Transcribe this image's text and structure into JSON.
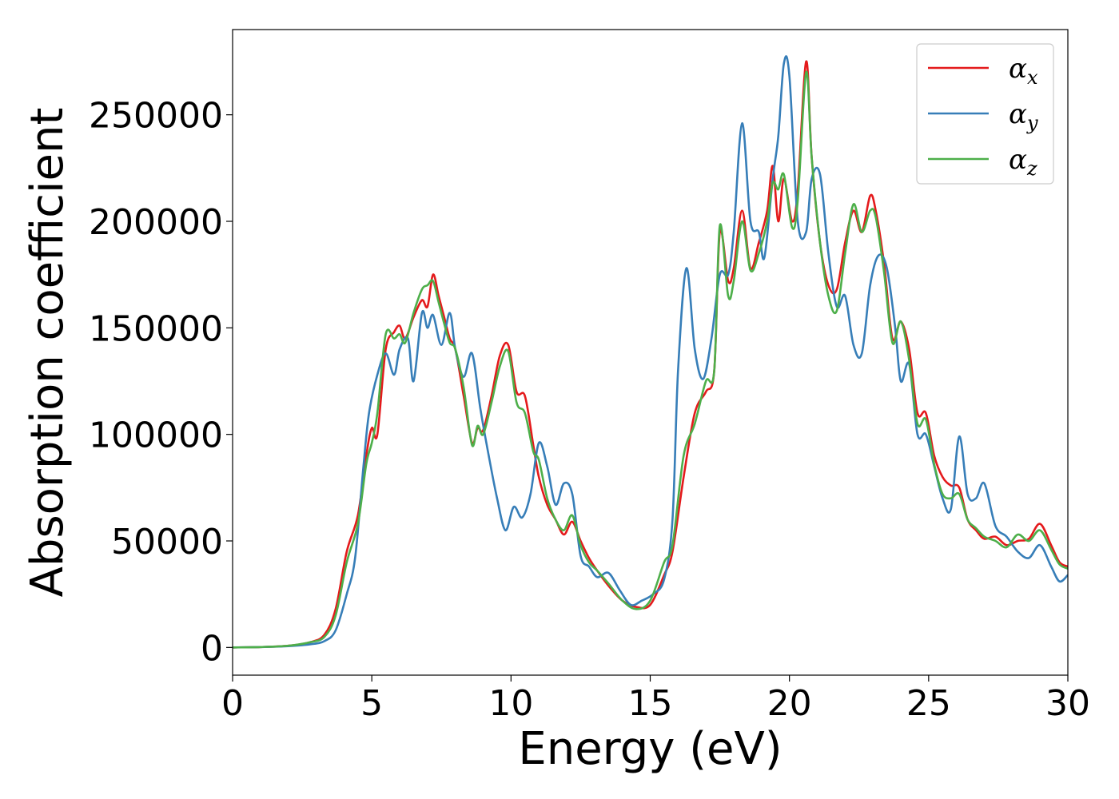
{
  "chart_data": {
    "type": "line",
    "xlabel": "Energy (eV)",
    "ylabel": "Absorption coefficient",
    "xlim": [
      0,
      30
    ],
    "ylim": [
      -13000,
      290000
    ],
    "xticks": [
      0,
      5,
      10,
      15,
      20,
      25,
      30
    ],
    "yticks": [
      0,
      50000,
      100000,
      150000,
      200000,
      250000
    ],
    "grid": false,
    "legend_position": "top-right",
    "series": [
      {
        "name": "α",
        "subscript": "x",
        "color": "#e41a1c",
        "x": [
          0,
          1,
          2,
          2.8,
          3.3,
          3.7,
          4.1,
          4.5,
          4.8,
          5.0,
          5.2,
          5.5,
          5.8,
          6.0,
          6.2,
          6.5,
          6.8,
          7.0,
          7.2,
          7.4,
          7.6,
          7.8,
          8.0,
          8.3,
          8.6,
          8.8,
          9.0,
          9.3,
          9.6,
          9.9,
          10.2,
          10.5,
          10.8,
          11.0,
          11.3,
          11.6,
          11.9,
          12.2,
          12.5,
          12.8,
          13.1,
          13.5,
          14.0,
          14.5,
          15.0,
          15.5,
          15.8,
          16.2,
          16.6,
          17.0,
          17.3,
          17.5,
          17.8,
          18.0,
          18.3,
          18.6,
          18.9,
          19.2,
          19.4,
          19.6,
          19.8,
          20.1,
          20.3,
          20.6,
          20.8,
          21.1,
          21.4,
          21.7,
          22.0,
          22.3,
          22.6,
          22.9,
          23.1,
          23.4,
          23.7,
          24.0,
          24.3,
          24.6,
          24.9,
          25.2,
          25.5,
          25.8,
          26.1,
          26.4,
          26.7,
          27.0,
          27.4,
          27.8,
          28.2,
          28.6,
          29.0,
          29.4,
          29.7,
          30.0
        ],
        "y": [
          0,
          200,
          800,
          2500,
          6000,
          18000,
          45000,
          62000,
          90000,
          103000,
          100000,
          140000,
          148000,
          151000,
          145000,
          155000,
          163000,
          160000,
          175000,
          165000,
          155000,
          145000,
          140000,
          118000,
          96000,
          103000,
          102000,
          118000,
          137000,
          142000,
          120000,
          118000,
          95000,
          80000,
          67000,
          60000,
          53000,
          59000,
          50000,
          42000,
          36000,
          29000,
          22000,
          19000,
          20000,
          34000,
          45000,
          80000,
          110000,
          120000,
          130000,
          195000,
          172000,
          178000,
          205000,
          178000,
          190000,
          205000,
          226000,
          200000,
          220000,
          200000,
          215000,
          275000,
          230000,
          190000,
          170000,
          168000,
          190000,
          205000,
          195000,
          212000,
          205000,
          180000,
          145000,
          153000,
          140000,
          110000,
          110000,
          90000,
          80000,
          76000,
          75000,
          60000,
          55000,
          51000,
          52000,
          48000,
          50000,
          51000,
          58000,
          48000,
          40000,
          38000
        ]
      },
      {
        "name": "α",
        "subscript": "y",
        "color": "#377eb8",
        "x": [
          0,
          1,
          2,
          2.8,
          3.3,
          3.7,
          4.1,
          4.4,
          4.7,
          4.9,
          5.2,
          5.5,
          5.8,
          6.0,
          6.3,
          6.5,
          6.8,
          7.0,
          7.2,
          7.5,
          7.8,
          8.0,
          8.3,
          8.6,
          8.9,
          9.2,
          9.5,
          9.8,
          10.1,
          10.4,
          10.7,
          11.0,
          11.3,
          11.6,
          11.9,
          12.2,
          12.5,
          12.8,
          13.1,
          13.5,
          13.9,
          14.3,
          14.7,
          15.1,
          15.5,
          15.8,
          16.0,
          16.3,
          16.6,
          16.9,
          17.2,
          17.5,
          17.8,
          18.0,
          18.3,
          18.6,
          18.9,
          19.1,
          19.4,
          19.6,
          19.8,
          20.0,
          20.3,
          20.6,
          20.8,
          21.1,
          21.4,
          21.7,
          22.0,
          22.3,
          22.6,
          22.9,
          23.2,
          23.5,
          23.8,
          24.0,
          24.3,
          24.6,
          24.9,
          25.2,
          25.5,
          25.8,
          26.1,
          26.4,
          26.7,
          27.0,
          27.4,
          27.8,
          28.2,
          28.6,
          29.0,
          29.4,
          29.7,
          30.0
        ],
        "y": [
          0,
          200,
          600,
          1500,
          3000,
          8000,
          25000,
          42000,
          85000,
          110000,
          128000,
          138000,
          128000,
          140000,
          145000,
          125000,
          157000,
          150000,
          156000,
          142000,
          157000,
          140000,
          127000,
          138000,
          112000,
          90000,
          70000,
          55000,
          66000,
          61000,
          72000,
          96000,
          85000,
          67000,
          77000,
          72000,
          43000,
          38000,
          33000,
          35000,
          27000,
          20000,
          22000,
          25000,
          32000,
          60000,
          130000,
          178000,
          140000,
          126000,
          145000,
          175000,
          175000,
          195000,
          246000,
          200000,
          195000,
          183000,
          220000,
          240000,
          274000,
          268000,
          200000,
          195000,
          220000,
          222000,
          185000,
          160000,
          165000,
          142000,
          138000,
          170000,
          184000,
          178000,
          150000,
          125000,
          133000,
          100000,
          100000,
          85000,
          70000,
          65000,
          99000,
          72000,
          70000,
          77000,
          57000,
          52000,
          45000,
          42000,
          48000,
          38000,
          31000,
          34000
        ]
      },
      {
        "name": "α",
        "subscript": "z",
        "color": "#4daf4a",
        "x": [
          0,
          1,
          2,
          2.8,
          3.3,
          3.7,
          4.1,
          4.5,
          4.8,
          5.0,
          5.2,
          5.5,
          5.8,
          6.0,
          6.2,
          6.5,
          6.8,
          7.0,
          7.2,
          7.4,
          7.6,
          7.8,
          8.0,
          8.3,
          8.6,
          8.8,
          9.0,
          9.3,
          9.6,
          9.9,
          10.2,
          10.5,
          10.8,
          11.0,
          11.3,
          11.6,
          11.9,
          12.2,
          12.5,
          12.8,
          13.1,
          13.5,
          14.0,
          14.5,
          15.0,
          15.5,
          15.8,
          16.2,
          16.6,
          17.0,
          17.3,
          17.5,
          17.8,
          18.0,
          18.3,
          18.6,
          18.9,
          19.2,
          19.4,
          19.6,
          19.8,
          20.1,
          20.3,
          20.6,
          20.8,
          21.1,
          21.4,
          21.7,
          22.0,
          22.3,
          22.6,
          22.9,
          23.1,
          23.4,
          23.7,
          24.0,
          24.3,
          24.6,
          24.9,
          25.2,
          25.5,
          25.8,
          26.1,
          26.4,
          26.7,
          27.0,
          27.4,
          27.8,
          28.2,
          28.6,
          29.0,
          29.4,
          29.7,
          30.0
        ],
        "y": [
          0,
          200,
          800,
          2500,
          5000,
          15000,
          40000,
          58000,
          86000,
          96000,
          110000,
          147000,
          145000,
          147000,
          143000,
          157000,
          168000,
          170000,
          172000,
          162000,
          152000,
          143000,
          140000,
          122000,
          95000,
          104000,
          100000,
          115000,
          132000,
          139000,
          115000,
          110000,
          92000,
          88000,
          70000,
          60000,
          55000,
          62000,
          48000,
          40000,
          36000,
          30000,
          22000,
          18000,
          22000,
          40000,
          48000,
          90000,
          105000,
          125000,
          130000,
          198000,
          165000,
          172000,
          200000,
          177000,
          185000,
          200000,
          218000,
          215000,
          222000,
          197000,
          210000,
          270000,
          230000,
          190000,
          165000,
          158000,
          185000,
          208000,
          195000,
          205000,
          202000,
          176000,
          143000,
          153000,
          135000,
          105000,
          107000,
          86000,
          72000,
          70000,
          72000,
          60000,
          56000,
          52000,
          50000,
          47000,
          53000,
          50000,
          55000,
          46000,
          39000,
          37000
        ]
      }
    ]
  }
}
